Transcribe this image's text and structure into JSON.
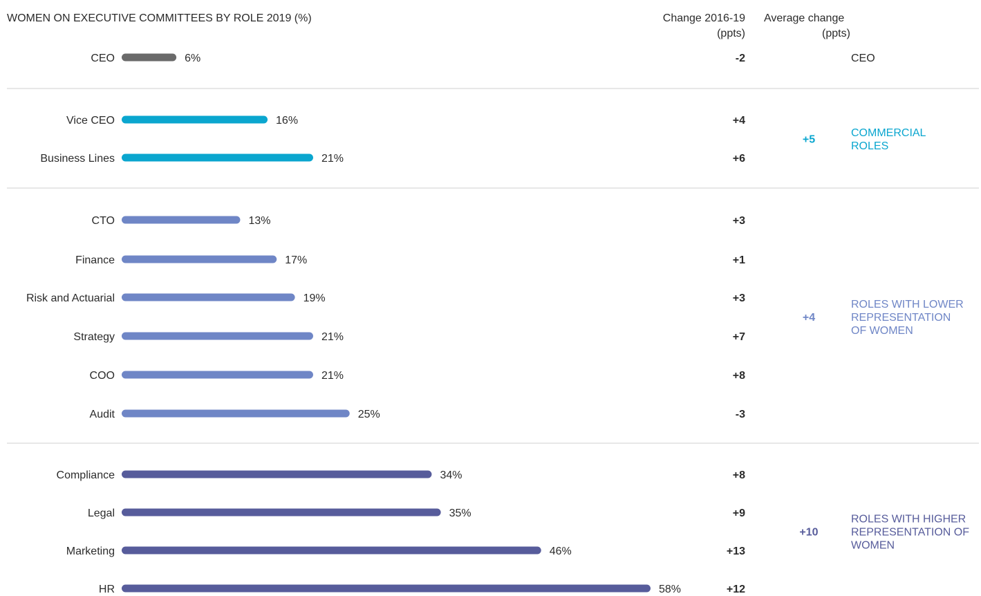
{
  "chart_data": {
    "type": "bar",
    "title": "WOMEN ON EXECUTIVE COMMITTEES BY ROLE 2019 (%)",
    "xlabel": "",
    "ylabel": "",
    "xlim": [
      0,
      60
    ],
    "grid": false,
    "columns": {
      "change_line1": "Change 2016-19",
      "change_line2": "(ppts)",
      "avg_line1": "Average change",
      "avg_line2": "(ppts)"
    },
    "groups": [
      {
        "id": "ceo",
        "label_lines": [
          "CEO"
        ],
        "average": "",
        "color": "#6a6a6a",
        "rows": [
          {
            "role": "CEO",
            "value": 6,
            "value_label": "6%",
            "change": "-2"
          }
        ]
      },
      {
        "id": "commercial",
        "label_lines": [
          "COMMERCIAL",
          "ROLES"
        ],
        "average": "+5",
        "color": "#0aa6cf",
        "rows": [
          {
            "role": "Vice CEO",
            "value": 16,
            "value_label": "16%",
            "change": "+4"
          },
          {
            "role": "Business Lines",
            "value": 21,
            "value_label": "21%",
            "change": "+6"
          }
        ]
      },
      {
        "id": "lower",
        "label_lines": [
          "ROLES WITH LOWER",
          "REPRESENTATION",
          "OF WOMEN"
        ],
        "average": "+4",
        "color": "#6f86c6",
        "rows": [
          {
            "role": "CTO",
            "value": 13,
            "value_label": "13%",
            "change": "+3"
          },
          {
            "role": "Finance",
            "value": 17,
            "value_label": "17%",
            "change": "+1"
          },
          {
            "role": "Risk and Actuarial",
            "value": 19,
            "value_label": "19%",
            "change": "+3"
          },
          {
            "role": "Strategy",
            "value": 21,
            "value_label": "21%",
            "change": "+7"
          },
          {
            "role": "COO",
            "value": 21,
            "value_label": "21%",
            "change": "+8"
          },
          {
            "role": "Audit",
            "value": 25,
            "value_label": "25%",
            "change": "-3"
          }
        ]
      },
      {
        "id": "higher",
        "label_lines": [
          "ROLES WITH HIGHER",
          "REPRESENTATION OF",
          "WOMEN"
        ],
        "average": "+10",
        "color": "#575c9b",
        "rows": [
          {
            "role": "Compliance",
            "value": 34,
            "value_label": "34%",
            "change": "+8"
          },
          {
            "role": "Legal",
            "value": 35,
            "value_label": "35%",
            "change": "+9"
          },
          {
            "role": "Marketing",
            "value": 46,
            "value_label": "46%",
            "change": "+13"
          },
          {
            "role": "HR",
            "value": 58,
            "value_label": "58%",
            "change": "+12"
          }
        ]
      }
    ]
  }
}
